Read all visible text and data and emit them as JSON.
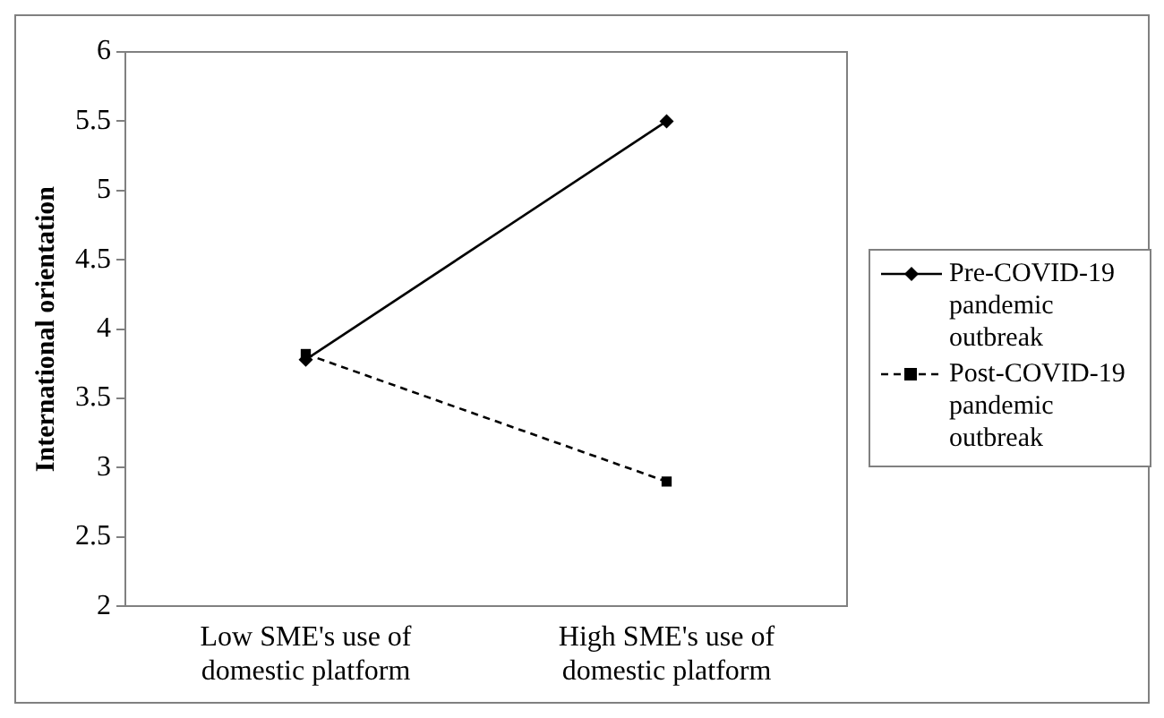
{
  "chart_data": {
    "type": "line",
    "ylabel": "International orientation",
    "categories": [
      "Low SME's use of domestic platform",
      "High SME's use of domestic platform"
    ],
    "series": [
      {
        "name": "Pre-COVID-19 pandemic outbreak",
        "color": "#000000",
        "values": [
          3.78,
          5.5
        ],
        "marker": "diamond",
        "line_style": "solid"
      },
      {
        "name": "Post-COVID-19 pandemic outbreak",
        "color": "#000000",
        "values": [
          3.82,
          2.9
        ],
        "marker": "square",
        "line_style": "dashed"
      }
    ],
    "ylim": [
      2,
      6
    ],
    "yticks": [
      2,
      2.5,
      3,
      3.5,
      4,
      4.5,
      5,
      5.5,
      6
    ],
    "grid": false,
    "legend": "right"
  }
}
